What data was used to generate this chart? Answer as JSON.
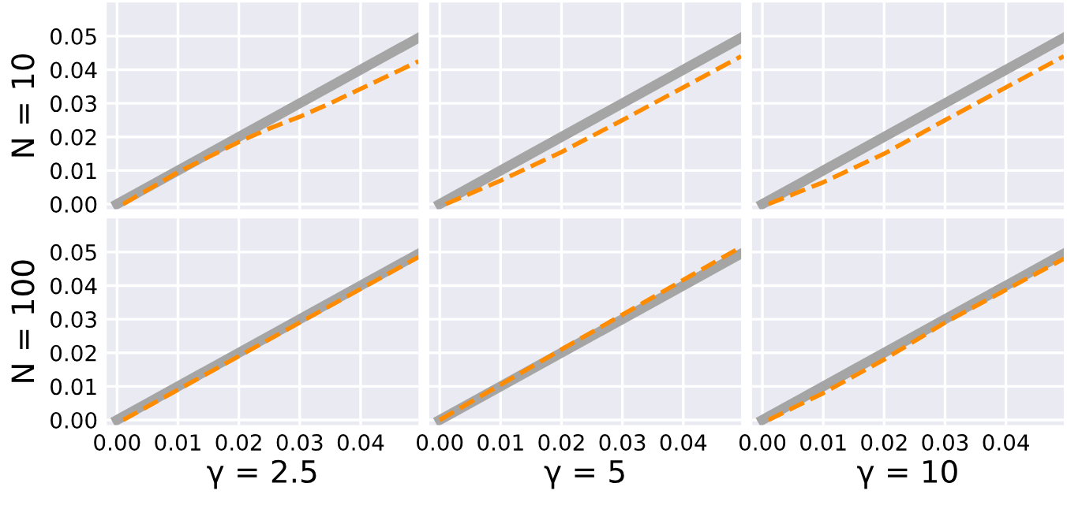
{
  "chart_data": [
    {
      "type": "line",
      "ylabel": "N = 10",
      "tick_labels": "y",
      "xlim": [
        -0.0017,
        0.0495
      ],
      "ylim": [
        -0.0015,
        0.06
      ],
      "xticks": [
        0.0,
        0.01,
        0.02,
        0.03,
        0.04
      ],
      "yticks": [
        {
          "value": 0.0,
          "label": "0.00"
        },
        {
          "value": 0.01,
          "label": "0.01"
        },
        {
          "value": 0.02,
          "label": "0.02"
        },
        {
          "value": 0.03,
          "label": "0.03"
        },
        {
          "value": 0.04,
          "label": "0.04"
        },
        {
          "value": 0.05,
          "label": "0.05"
        }
      ],
      "grid": true,
      "legend": false,
      "series": [
        {
          "color": "#a5a5a5",
          "line_style": "solid",
          "x": [
            0.0,
            0.0495
          ],
          "values": [
            0.0,
            0.0495
          ]
        },
        {
          "color": "#ff8c00",
          "line_style": "dashed",
          "x": [
            0.001,
            0.01,
            0.02,
            0.025,
            0.03,
            0.035,
            0.0495
          ],
          "values": [
            0.0,
            0.0095,
            0.0185,
            0.0225,
            0.026,
            0.03,
            0.0425
          ]
        }
      ]
    },
    {
      "type": "line",
      "tick_labels": false,
      "xlim": [
        -0.0017,
        0.0495
      ],
      "ylim": [
        -0.0015,
        0.06
      ],
      "xticks": [
        0.0,
        0.01,
        0.02,
        0.03,
        0.04
      ],
      "yticks": [
        0.0,
        0.01,
        0.02,
        0.03,
        0.04,
        0.05
      ],
      "grid": true,
      "legend": false,
      "series": [
        {
          "color": "#a5a5a5",
          "line_style": "solid",
          "x": [
            0.0,
            0.0495
          ],
          "values": [
            0.0,
            0.0495
          ]
        },
        {
          "color": "#ff8c00",
          "line_style": "dashed",
          "x": [
            0.001,
            0.01,
            0.02,
            0.03,
            0.0495
          ],
          "values": [
            0.0,
            0.007,
            0.0155,
            0.025,
            0.044
          ]
        }
      ]
    },
    {
      "type": "line",
      "tick_labels": false,
      "xlim": [
        -0.0017,
        0.0495
      ],
      "ylim": [
        -0.0015,
        0.06
      ],
      "xticks": [
        0.0,
        0.01,
        0.02,
        0.03,
        0.04
      ],
      "yticks": [
        0.0,
        0.01,
        0.02,
        0.03,
        0.04,
        0.05
      ],
      "grid": true,
      "legend": false,
      "series": [
        {
          "color": "#a5a5a5",
          "line_style": "solid",
          "x": [
            0.0,
            0.0495
          ],
          "values": [
            0.0,
            0.0495
          ]
        },
        {
          "color": "#ff8c00",
          "line_style": "dashed",
          "x": [
            0.001,
            0.01,
            0.02,
            0.03,
            0.0495
          ],
          "values": [
            0.0,
            0.0065,
            0.015,
            0.025,
            0.044
          ]
        }
      ]
    },
    {
      "type": "line",
      "ylabel": "N = 100",
      "xlabel": "γ = 2.5",
      "xlim": [
        -0.0017,
        0.0495
      ],
      "ylim": [
        -0.0015,
        0.06
      ],
      "xticks": [
        {
          "value": 0.0,
          "label": "0.00"
        },
        {
          "value": 0.01,
          "label": "0.01"
        },
        {
          "value": 0.02,
          "label": "0.02"
        },
        {
          "value": 0.03,
          "label": "0.03"
        },
        {
          "value": 0.04,
          "label": "0.04"
        }
      ],
      "yticks": [
        {
          "value": 0.0,
          "label": "0.00"
        },
        {
          "value": 0.01,
          "label": "0.01"
        },
        {
          "value": 0.02,
          "label": "0.02"
        },
        {
          "value": 0.03,
          "label": "0.03"
        },
        {
          "value": 0.04,
          "label": "0.04"
        },
        {
          "value": 0.05,
          "label": "0.05"
        }
      ],
      "grid": true,
      "legend": false,
      "series": [
        {
          "color": "#a5a5a5",
          "line_style": "solid",
          "x": [
            0.0,
            0.0495
          ],
          "values": [
            0.0,
            0.0495
          ]
        },
        {
          "color": "#ff8c00",
          "line_style": "dashed",
          "x": [
            0.001,
            0.0495
          ],
          "values": [
            0.0,
            0.0485
          ]
        }
      ]
    },
    {
      "type": "line",
      "xlabel": "γ = 5",
      "tick_labels": "x",
      "xlim": [
        -0.0017,
        0.0495
      ],
      "ylim": [
        -0.0015,
        0.06
      ],
      "xticks": [
        {
          "value": 0.0,
          "label": "0.00"
        },
        {
          "value": 0.01,
          "label": "0.01"
        },
        {
          "value": 0.02,
          "label": "0.02"
        },
        {
          "value": 0.03,
          "label": "0.03"
        },
        {
          "value": 0.04,
          "label": "0.04"
        }
      ],
      "yticks": [
        0.0,
        0.01,
        0.02,
        0.03,
        0.04,
        0.05
      ],
      "grid": true,
      "legend": false,
      "series": [
        {
          "color": "#a5a5a5",
          "line_style": "solid",
          "x": [
            0.0,
            0.0495
          ],
          "values": [
            0.0,
            0.0495
          ]
        },
        {
          "color": "#ff8c00",
          "line_style": "dashed",
          "x": [
            0.0,
            0.02,
            0.0495
          ],
          "values": [
            0.0,
            0.021,
            0.0515
          ]
        }
      ]
    },
    {
      "type": "line",
      "xlabel": "γ = 10",
      "tick_labels": "x",
      "xlim": [
        -0.0017,
        0.0495
      ],
      "ylim": [
        -0.0015,
        0.06
      ],
      "xticks": [
        {
          "value": 0.0,
          "label": "0.00"
        },
        {
          "value": 0.01,
          "label": "0.01"
        },
        {
          "value": 0.02,
          "label": "0.02"
        },
        {
          "value": 0.03,
          "label": "0.03"
        },
        {
          "value": 0.04,
          "label": "0.04"
        }
      ],
      "yticks": [
        0.0,
        0.01,
        0.02,
        0.03,
        0.04,
        0.05
      ],
      "grid": true,
      "legend": false,
      "series": [
        {
          "color": "#a5a5a5",
          "line_style": "solid",
          "x": [
            0.0,
            0.0495
          ],
          "values": [
            0.0,
            0.0495
          ]
        },
        {
          "color": "#ff8c00",
          "line_style": "dashed",
          "x": [
            0.001,
            0.01,
            0.02,
            0.03,
            0.0495
          ],
          "values": [
            0.0,
            0.008,
            0.018,
            0.029,
            0.048
          ]
        }
      ]
    }
  ]
}
